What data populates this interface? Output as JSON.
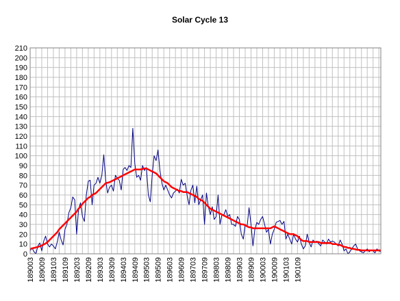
{
  "chart_data": {
    "type": "line",
    "title": "Solar Cycle 13",
    "xlabel": "",
    "ylabel": "",
    "ylim": [
      0,
      210
    ],
    "yticks": [
      0,
      10,
      20,
      30,
      40,
      50,
      60,
      70,
      80,
      90,
      100,
      110,
      120,
      130,
      140,
      150,
      160,
      170,
      180,
      190,
      200,
      210
    ],
    "x_tick_labels": [
      "189003",
      "189009",
      "189103",
      "189109",
      "189203",
      "189209",
      "189303",
      "189309",
      "189403",
      "189409",
      "189503",
      "189509",
      "189603",
      "189609",
      "189703",
      "189709",
      "189803",
      "189809",
      "189903",
      "189909",
      "190003",
      "190009",
      "190103",
      "190109"
    ],
    "grid": true,
    "legend": "none",
    "start_month": "1890-03",
    "series": [
      {
        "color": "#000080",
        "values": [
          3,
          6,
          2,
          0,
          8,
          11,
          3,
          13,
          18,
          10,
          7,
          10,
          8,
          5,
          12,
          22,
          14,
          9,
          25,
          30,
          42,
          47,
          58,
          55,
          20,
          45,
          52,
          38,
          33,
          60,
          74,
          75,
          50,
          70,
          72,
          78,
          72,
          80,
          101,
          75,
          62,
          68,
          70,
          64,
          80,
          77,
          75,
          65,
          86,
          88,
          85,
          90,
          88,
          128,
          92,
          78,
          80,
          75,
          90,
          85,
          88,
          60,
          53,
          80,
          100,
          95,
          106,
          85,
          72,
          65,
          70,
          65,
          60,
          57,
          62,
          64,
          66,
          62,
          76,
          70,
          72,
          60,
          50,
          65,
          70,
          52,
          69,
          50,
          55,
          60,
          30,
          62,
          48,
          40,
          48,
          35,
          38,
          60,
          30,
          40,
          40,
          45,
          38,
          40,
          30,
          30,
          28,
          38,
          35,
          20,
          15,
          30,
          28,
          47,
          30,
          8,
          25,
          32,
          30,
          35,
          38,
          30,
          22,
          25,
          10,
          20,
          25,
          32,
          33,
          34,
          30,
          33,
          15,
          20,
          15,
          10,
          20,
          15,
          12,
          18,
          10,
          5,
          8,
          20,
          12,
          7,
          14,
          12,
          13,
          10,
          8,
          14,
          12,
          10,
          15,
          12,
          13,
          12,
          10,
          8,
          14,
          10,
          3,
          5,
          0,
          2,
          5,
          8,
          10,
          5,
          3,
          2,
          1,
          3,
          5,
          2,
          4,
          3,
          1,
          5,
          3,
          2
        ]
      },
      {
        "color": "#ff0000",
        "values": [
          5,
          5.5,
          6,
          6.5,
          7,
          7.7,
          8.5,
          9.5,
          10.5,
          12,
          14,
          16,
          18,
          20,
          22,
          25,
          27,
          29,
          31,
          33,
          35,
          37,
          39,
          41,
          43,
          46,
          48,
          51,
          53,
          55,
          57,
          58,
          60,
          61,
          62,
          64,
          66,
          68,
          70,
          72,
          72.5,
          73,
          74,
          75,
          76,
          77,
          78,
          79,
          80,
          81,
          82,
          83,
          84,
          85,
          86,
          86,
          86,
          86,
          86.5,
          87,
          87,
          86,
          85,
          84,
          83,
          82,
          80,
          78,
          76,
          74,
          73,
          72,
          70,
          68,
          67,
          66,
          65,
          64,
          64,
          63,
          63,
          63,
          62,
          61,
          60,
          59,
          58,
          56,
          55,
          54,
          52,
          50,
          48,
          46,
          45,
          44,
          43,
          42,
          41,
          40,
          39,
          38,
          37,
          36,
          35,
          34,
          33,
          32,
          31,
          30,
          30,
          29,
          28,
          27,
          27,
          26,
          26,
          26,
          26,
          26,
          26,
          26,
          26,
          26,
          26,
          27,
          28,
          27,
          26,
          25,
          24,
          23,
          22,
          21,
          20,
          20,
          20,
          19,
          18,
          16,
          14,
          13,
          13,
          13,
          12,
          12,
          12,
          12,
          12,
          12,
          11,
          11,
          11,
          11,
          11,
          11,
          10,
          10,
          10,
          9,
          9,
          8,
          7,
          7,
          6,
          6,
          5,
          5,
          4.5,
          4,
          4,
          3.5,
          3.5,
          3.5,
          3.5,
          3.5,
          3.5,
          3.5,
          3.5,
          3.5,
          3.5,
          3.5
        ]
      }
    ]
  }
}
